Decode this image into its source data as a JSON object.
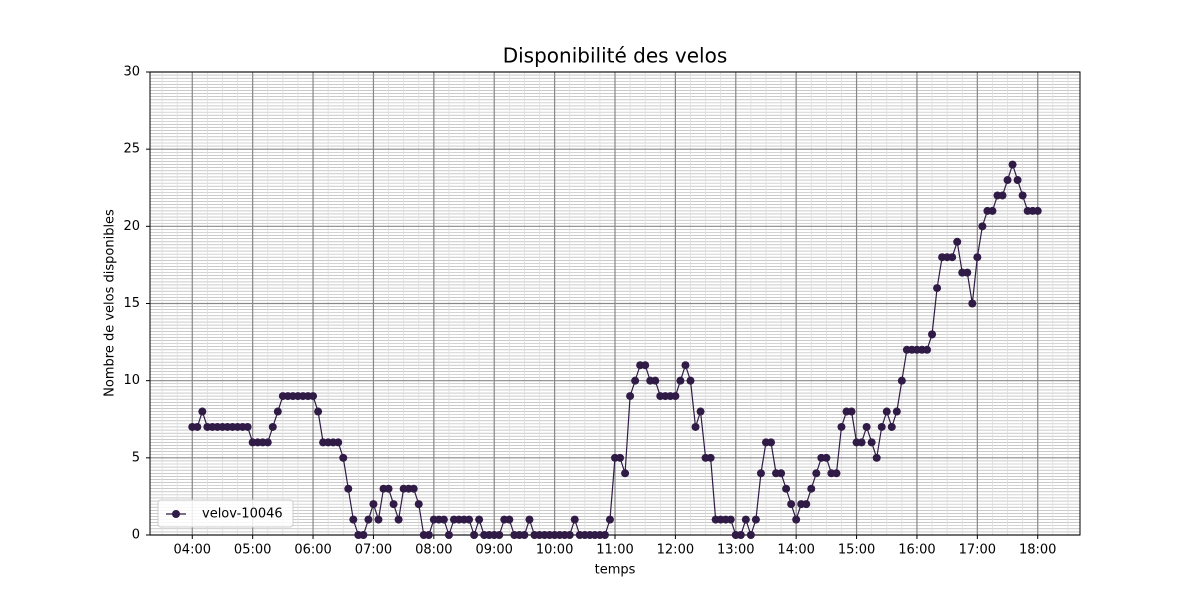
{
  "chart_data": {
    "type": "line",
    "title": "Disponibilité des velos",
    "xlabel": "temps",
    "ylabel": "Nombre de velos disponibles",
    "x": [
      "04:00",
      "04:05",
      "04:10",
      "04:15",
      "04:20",
      "04:25",
      "04:30",
      "04:35",
      "04:40",
      "04:45",
      "04:50",
      "04:55",
      "05:00",
      "05:05",
      "05:10",
      "05:15",
      "05:20",
      "05:25",
      "05:30",
      "05:35",
      "05:40",
      "05:45",
      "05:50",
      "05:55",
      "06:00",
      "06:05",
      "06:10",
      "06:15",
      "06:20",
      "06:25",
      "06:30",
      "06:35",
      "06:40",
      "06:45",
      "06:50",
      "06:55",
      "07:00",
      "07:05",
      "07:10",
      "07:15",
      "07:20",
      "07:25",
      "07:30",
      "07:35",
      "07:40",
      "07:45",
      "07:50",
      "07:55",
      "08:00",
      "08:05",
      "08:10",
      "08:15",
      "08:20",
      "08:25",
      "08:30",
      "08:35",
      "08:40",
      "08:45",
      "08:50",
      "08:55",
      "09:00",
      "09:05",
      "09:10",
      "09:15",
      "09:20",
      "09:25",
      "09:30",
      "09:35",
      "09:40",
      "09:45",
      "09:50",
      "09:55",
      "10:00",
      "10:05",
      "10:10",
      "10:15",
      "10:20",
      "10:25",
      "10:30",
      "10:35",
      "10:40",
      "10:45",
      "10:50",
      "10:55",
      "11:00",
      "11:05",
      "11:10",
      "11:15",
      "11:20",
      "11:25",
      "11:30",
      "11:35",
      "11:40",
      "11:45",
      "11:50",
      "11:55",
      "12:00",
      "12:05",
      "12:10",
      "12:15",
      "12:20",
      "12:25",
      "12:30",
      "12:35",
      "12:40",
      "12:45",
      "12:50",
      "12:55",
      "13:00",
      "13:05",
      "13:10",
      "13:15",
      "13:20",
      "13:25",
      "13:30",
      "13:35",
      "13:40",
      "13:45",
      "13:50",
      "13:55",
      "14:00",
      "14:05",
      "14:10",
      "14:15",
      "14:20",
      "14:25",
      "14:30",
      "14:35",
      "14:40",
      "14:45",
      "14:50",
      "14:55",
      "15:00",
      "15:05",
      "15:10",
      "15:15",
      "15:20",
      "15:25",
      "15:30",
      "15:35",
      "15:40",
      "15:45",
      "15:50",
      "15:55",
      "16:00",
      "16:05",
      "16:10",
      "16:15",
      "16:20",
      "16:25",
      "16:30",
      "16:35",
      "16:40",
      "16:45",
      "16:50",
      "16:55",
      "17:00",
      "17:05",
      "17:10",
      "17:15",
      "17:20",
      "17:25",
      "17:30",
      "17:35",
      "17:40",
      "17:45",
      "17:50",
      "17:55",
      "18:00"
    ],
    "series": [
      {
        "name": "velov-10046",
        "color": "#2f1b45",
        "values": [
          7,
          7,
          8,
          7,
          7,
          7,
          7,
          7,
          7,
          7,
          7,
          7,
          6,
          6,
          6,
          6,
          7,
          8,
          9,
          9,
          9,
          9,
          9,
          9,
          9,
          8,
          6,
          6,
          6,
          6,
          5,
          3,
          1,
          0,
          0,
          1,
          2,
          1,
          3,
          3,
          2,
          1,
          3,
          3,
          3,
          2,
          0,
          0,
          1,
          1,
          1,
          0,
          1,
          1,
          1,
          1,
          0,
          1,
          0,
          0,
          0,
          0,
          1,
          1,
          0,
          0,
          0,
          1,
          0,
          0,
          0,
          0,
          0,
          0,
          0,
          0,
          1,
          0,
          0,
          0,
          0,
          0,
          0,
          1,
          5,
          5,
          4,
          9,
          10,
          11,
          11,
          10,
          10,
          9,
          9,
          9,
          9,
          10,
          11,
          10,
          7,
          8,
          5,
          5,
          1,
          1,
          1,
          1,
          0,
          0,
          1,
          0,
          1,
          4,
          6,
          6,
          4,
          4,
          3,
          2,
          1,
          2,
          2,
          3,
          4,
          5,
          5,
          4,
          4,
          7,
          8,
          8,
          6,
          6,
          7,
          6,
          5,
          7,
          8,
          7,
          8,
          10,
          12,
          12,
          12,
          12,
          12,
          13,
          16,
          18,
          18,
          18,
          19,
          17,
          17,
          15,
          18,
          20,
          21,
          21,
          22,
          22,
          23,
          24,
          23,
          22,
          21,
          21,
          21
        ]
      }
    ],
    "xlim": [
      "03:18",
      "18:42"
    ],
    "xticks": [
      "04:00",
      "05:00",
      "06:00",
      "07:00",
      "08:00",
      "09:00",
      "10:00",
      "11:00",
      "12:00",
      "13:00",
      "14:00",
      "15:00",
      "16:00",
      "17:00",
      "18:00"
    ],
    "ylim": [
      0,
      30
    ],
    "yticks": [
      0,
      5,
      10,
      15,
      20,
      25,
      30
    ],
    "grid": true,
    "legend": "lower left"
  }
}
